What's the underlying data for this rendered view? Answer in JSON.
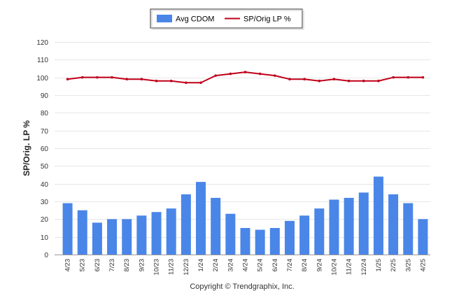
{
  "chart_data": {
    "type": "bar",
    "categories": [
      "4/23",
      "5/23",
      "6/23",
      "7/23",
      "8/23",
      "9/23",
      "10/23",
      "11/23",
      "12/23",
      "1/24",
      "2/24",
      "3/24",
      "4/24",
      "5/24",
      "6/24",
      "7/24",
      "8/24",
      "9/24",
      "10/24",
      "11/24",
      "12/24",
      "1/25",
      "2/25",
      "3/25",
      "4/25"
    ],
    "series": [
      {
        "name": "Avg CDOM",
        "type": "bar",
        "color": "#4a86e8",
        "values": [
          29,
          25,
          18,
          20,
          20,
          22,
          24,
          26,
          34,
          41,
          32,
          23,
          15,
          14,
          15,
          19,
          22,
          26,
          31,
          32,
          35,
          44,
          34,
          29,
          20
        ]
      },
      {
        "name": "SP/Orig LP %",
        "type": "line",
        "color": "#c0001a",
        "values": [
          99,
          100,
          100,
          100,
          99,
          99,
          98,
          98,
          97,
          97,
          101,
          102,
          103,
          102,
          101,
          99,
          99,
          98,
          99,
          98,
          98,
          98,
          100,
          100,
          100
        ]
      }
    ],
    "ylabel": "SP/Orig. LP %",
    "ylim": [
      0,
      120
    ],
    "yticks": [
      0,
      10,
      20,
      30,
      40,
      50,
      60,
      70,
      80,
      90,
      100,
      110,
      120
    ],
    "grid": true,
    "legend_position": "top-center",
    "footer": "Copyright © Trendgraphix, Inc."
  }
}
